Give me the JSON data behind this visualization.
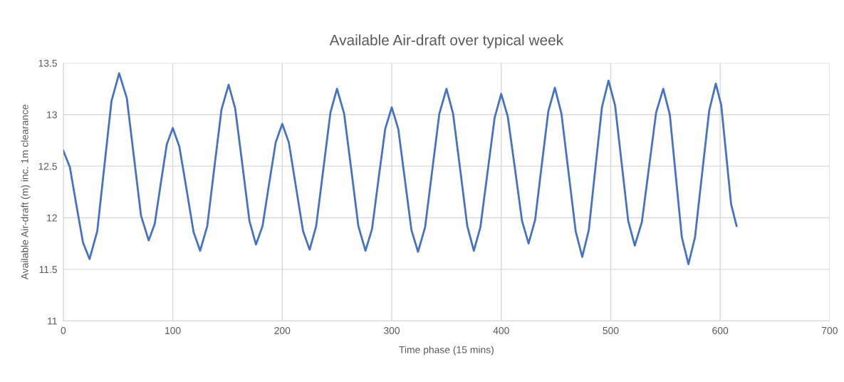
{
  "chart_data": {
    "type": "line",
    "title": "Available Air-draft over typical week",
    "xlabel": "Time phase (15 mins)",
    "ylabel": "Available Air-draft (m) inc. 1m clearance",
    "xlim": [
      0,
      700
    ],
    "xticks": [
      0,
      100,
      200,
      300,
      400,
      500,
      600,
      700
    ],
    "ylim": [
      11,
      13.5
    ],
    "yticks": [
      11,
      11.5,
      12,
      12.5,
      13,
      13.5
    ],
    "grid": true,
    "marker": "none",
    "line_style": "solid",
    "series": [
      {
        "color": "#4472c4",
        "x": [
          0,
          6,
          12,
          18,
          24,
          31,
          37.5,
          44,
          51,
          58,
          64.5,
          71,
          78,
          83.5,
          89,
          94.5,
          100,
          106,
          112.5,
          119,
          125,
          131.5,
          138,
          144.5,
          151,
          157,
          163.5,
          170,
          176,
          182,
          188,
          194,
          200,
          206,
          212.5,
          219,
          225,
          231,
          237.5,
          244,
          250,
          256.5,
          263,
          269.5,
          276,
          282,
          288,
          294,
          300,
          306,
          312,
          318,
          324,
          330.5,
          337,
          343.5,
          350,
          356,
          362.5,
          369,
          375,
          381,
          387.5,
          394,
          400,
          406,
          412.5,
          419,
          425,
          431,
          437,
          443,
          449,
          455,
          461.5,
          468,
          474,
          480,
          486,
          492,
          498,
          504,
          510,
          516,
          522,
          528.5,
          535,
          541.5,
          548,
          554,
          559.5,
          565,
          571,
          577,
          583.5,
          590,
          596,
          601,
          605.5,
          610,
          615
        ],
        "values": [
          12.65,
          12.49,
          12.12,
          11.76,
          11.6,
          11.87,
          12.5,
          13.13,
          13.4,
          13.16,
          12.59,
          12.02,
          11.78,
          11.94,
          12.33,
          12.71,
          12.87,
          12.69,
          12.28,
          11.86,
          11.68,
          11.92,
          12.49,
          13.05,
          13.29,
          13.06,
          12.52,
          11.97,
          11.74,
          11.92,
          12.33,
          12.73,
          12.91,
          12.73,
          12.3,
          11.87,
          11.69,
          11.92,
          12.47,
          13.02,
          13.25,
          13.01,
          12.47,
          11.92,
          11.68,
          11.89,
          12.38,
          12.86,
          13.07,
          12.86,
          12.37,
          11.88,
          11.67,
          11.91,
          12.46,
          13.01,
          13.25,
          13.01,
          12.47,
          11.92,
          11.68,
          11.91,
          12.44,
          12.97,
          13.2,
          12.98,
          12.48,
          11.97,
          11.75,
          11.98,
          12.51,
          13.03,
          13.26,
          13.01,
          12.44,
          11.87,
          11.62,
          11.88,
          12.48,
          13.07,
          13.33,
          13.09,
          12.53,
          11.97,
          11.73,
          11.96,
          12.49,
          13.02,
          13.25,
          13.0,
          12.4,
          11.81,
          11.55,
          11.81,
          12.43,
          13.04,
          13.3,
          13.09,
          12.61,
          12.13,
          11.92
        ]
      }
    ]
  }
}
